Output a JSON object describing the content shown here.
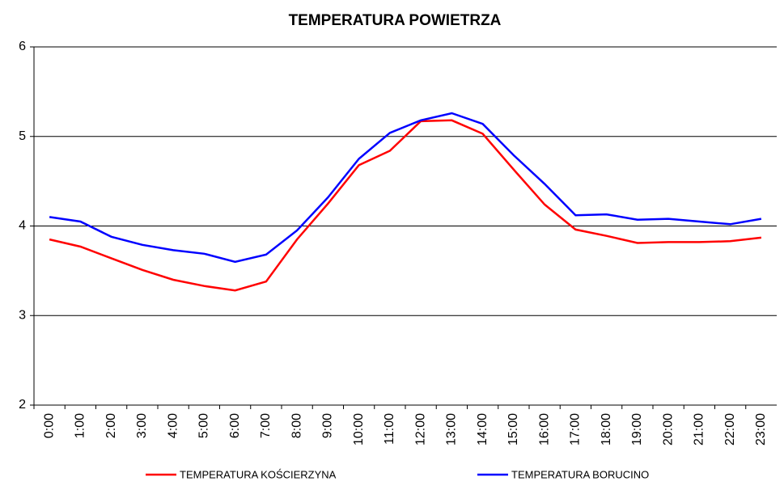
{
  "chart_data": {
    "type": "line",
    "title": "TEMPERATURA POWIETRZA",
    "categories": [
      "0:00",
      "1:00",
      "2:00",
      "3:00",
      "4:00",
      "5:00",
      "6:00",
      "7:00",
      "8:00",
      "9:00",
      "10:00",
      "11:00",
      "12:00",
      "13:00",
      "14:00",
      "15:00",
      "16:00",
      "17:00",
      "18:00",
      "19:00",
      "20:00",
      "21:00",
      "22:00",
      "23:00"
    ],
    "series": [
      {
        "name": "TEMPERATURA KOŚCIERZYNA",
        "color": "#ff0000",
        "values": [
          3.85,
          3.77,
          3.64,
          3.51,
          3.4,
          3.33,
          3.28,
          3.38,
          3.85,
          4.25,
          4.68,
          4.84,
          5.17,
          5.18,
          5.03,
          4.63,
          4.24,
          3.96,
          3.89,
          3.81,
          3.82,
          3.82,
          3.83,
          3.87
        ]
      },
      {
        "name": "TEMPERATURA BORUCINO",
        "color": "#0000ff",
        "values": [
          4.1,
          4.05,
          3.88,
          3.79,
          3.73,
          3.69,
          3.6,
          3.68,
          3.95,
          4.32,
          4.75,
          5.04,
          5.18,
          5.26,
          5.14,
          4.79,
          4.47,
          4.12,
          4.13,
          4.07,
          4.08,
          4.05,
          4.02,
          4.08
        ]
      }
    ],
    "ylim": [
      2,
      6
    ],
    "yticks": [
      2,
      3,
      4,
      5,
      6
    ],
    "grid": true,
    "legend": "bottom"
  }
}
